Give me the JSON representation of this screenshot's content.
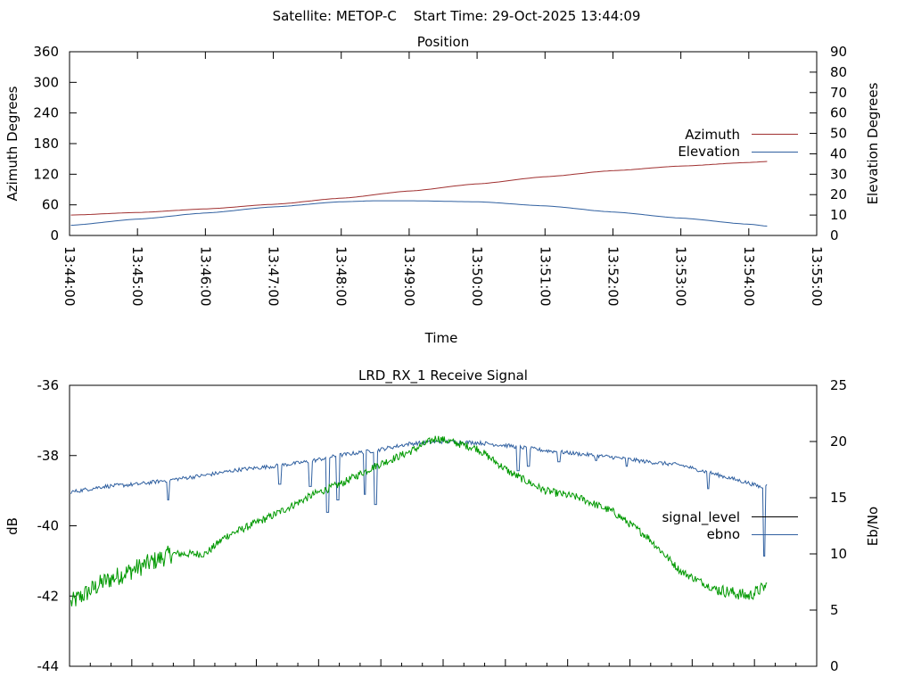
{
  "header": {
    "title": "Satellite: METOP-C    Start Time: 29-Oct-2025 13:44:09"
  },
  "chart_data": [
    {
      "type": "line",
      "title": "Position",
      "xlabel": "Time",
      "ylabel": "Azimuth Degrees",
      "y2label": "Elevation Degrees",
      "x_ticks": [
        "13:44:00",
        "13:45:00",
        "13:46:00",
        "13:47:00",
        "13:48:00",
        "13:49:00",
        "13:50:00",
        "13:51:00",
        "13:52:00",
        "13:53:00",
        "13:54:00",
        "13:55:00"
      ],
      "y_ticks": [
        "0",
        "60",
        "120",
        "180",
        "240",
        "300",
        "360"
      ],
      "y2_ticks": [
        "0",
        "10",
        "20",
        "30",
        "40",
        "50",
        "60",
        "70",
        "80",
        "90"
      ],
      "xlim": [
        0,
        11
      ],
      "ylim": [
        0,
        360
      ],
      "y2lim": [
        0,
        90
      ],
      "legend": [
        "Azimuth",
        "Elevation"
      ],
      "legend_position": "right",
      "colors": {
        "azimuth": "#a03030",
        "elevation": "#3060a0"
      },
      "series": [
        {
          "name": "Azimuth",
          "axis": "left",
          "x": [
            0.02,
            1,
            2,
            3,
            4,
            5,
            6,
            7,
            8,
            9,
            10,
            10.27
          ],
          "values": [
            40,
            45,
            52,
            61,
            73,
            87,
            101,
            115,
            127,
            136,
            143,
            145
          ]
        },
        {
          "name": "Elevation",
          "axis": "right",
          "x": [
            0.02,
            1,
            2,
            3,
            4,
            4.5,
            5,
            6,
            7,
            8,
            9,
            10,
            10.27
          ],
          "values": [
            5,
            8,
            11,
            14,
            16.5,
            17,
            17,
            16.5,
            14.5,
            11.5,
            8.5,
            5.5,
            4.6
          ]
        }
      ]
    },
    {
      "type": "line",
      "title": "LRD_RX_1 Receive Signal",
      "xlabel": "",
      "ylabel": "dB",
      "y2label": "Eb/No",
      "y_ticks": [
        "-36",
        "-38",
        "-40",
        "-42",
        "-44"
      ],
      "y2_ticks": [
        "0",
        "5",
        "10",
        "15",
        "20",
        "25"
      ],
      "xlim": [
        0,
        11
      ],
      "ylim": [
        -44,
        -36
      ],
      "y2lim": [
        0,
        25
      ],
      "minor_tick_count": 36,
      "legend": [
        "signal_level",
        "ebno"
      ],
      "legend_position": "right",
      "colors": {
        "signal_level": "#009900",
        "ebno": "#3060a0",
        "legend_signal": "#000000"
      },
      "series": [
        {
          "name": "signal_level",
          "axis": "left",
          "x": [
            0.02,
            0.5,
            1,
            1.5,
            2,
            2.3,
            3,
            3.6,
            4,
            4.5,
            5,
            5.4,
            6,
            6.5,
            7,
            7.5,
            8,
            8.5,
            9,
            9.5,
            10,
            10.27
          ],
          "values": [
            -42.2,
            -41.6,
            -41.2,
            -40.8,
            -40.8,
            -40.3,
            -39.7,
            -39.1,
            -38.8,
            -38.3,
            -37.9,
            -37.5,
            -37.8,
            -38.5,
            -39.0,
            -39.2,
            -39.6,
            -40.3,
            -41.3,
            -41.8,
            -42.0,
            -41.7
          ]
        },
        {
          "name": "ebno",
          "axis": "right",
          "x": [
            0.02,
            0.5,
            1,
            1.5,
            2,
            2.5,
            3,
            3.5,
            4,
            4.5,
            5,
            5.5,
            6,
            6.5,
            7,
            7.5,
            8,
            8.5,
            9,
            9.5,
            10,
            10.2,
            10.27
          ],
          "values": [
            15.5,
            16.0,
            16.2,
            16.6,
            17.0,
            17.5,
            17.8,
            18.2,
            18.8,
            19.2,
            19.8,
            20.0,
            19.9,
            19.6,
            19.2,
            18.9,
            18.6,
            18.2,
            17.9,
            17.1,
            16.3,
            15.9,
            16.3
          ]
        }
      ]
    }
  ]
}
